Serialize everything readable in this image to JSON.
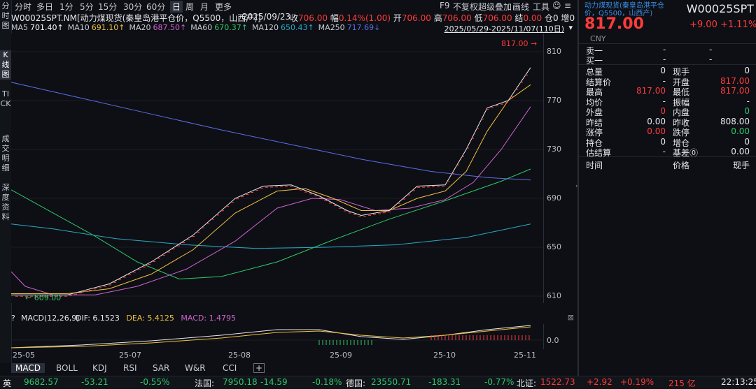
{
  "sidebar": {
    "groups": [
      {
        "label": "分时图",
        "selected": false
      },
      {
        "label": "K线图",
        "selected": true
      },
      {
        "label": "TICK",
        "selected": false
      },
      {
        "label": "成交明细",
        "selected": false
      },
      {
        "label": "深度资料",
        "selected": false
      }
    ]
  },
  "periods": [
    "分时",
    "多日",
    "1分",
    "5分",
    "15分",
    "30分",
    "60分",
    "日",
    "周",
    "月",
    "更多"
  ],
  "selected_period": "日",
  "tools": [
    "F9",
    "不复权",
    "超级叠加",
    "画线",
    "工具",
    "☺",
    "≡"
  ],
  "info": {
    "symbol": "W00025SPT.NM[动力煤现货(秦皇岛港平仓价，Q5500，山西产)]",
    "date": "2025/09/23",
    "close_label": "收",
    "close": "706.00",
    "change_label": "幅",
    "change": "0.14%(1.00)",
    "open_label": "开",
    "open": "706.00",
    "high_label": "高",
    "high": "706.00",
    "low_label": "低",
    "low": "706.00",
    "settle_label": "结",
    "settle": "0.00",
    "pos_label": "仓",
    "pos": "0",
    "inc_label": "增",
    "inc": "0"
  },
  "ma": {
    "items": [
      {
        "label": "MA5",
        "value": "701.40↑",
        "color": "#ffffff"
      },
      {
        "label": "MA10",
        "value": "691.10↑",
        "color": "#f0c040"
      },
      {
        "label": "MA20",
        "value": "687.50↑",
        "color": "#d062d0"
      },
      {
        "label": "MA60",
        "value": "670.37↑",
        "color": "#2ec96a"
      },
      {
        "label": "MA120",
        "value": "650.43↑",
        "color": "#2aa8c8"
      },
      {
        "label": "MA250",
        "value": "717.69↓",
        "color": "#5b6ee8"
      }
    ],
    "range": "2025/05/29-2025/11/07(110日)"
  },
  "chart": {
    "y_ticks": [
      "810",
      "770",
      "730",
      "690",
      "650",
      "610"
    ],
    "high_tag": "817.00",
    "low_tag": "609.00",
    "dates": [
      "25-05",
      "25-07",
      "25-08",
      "25-09",
      "25-10",
      "25-11"
    ],
    "macd_zero": "0.0"
  },
  "macd": {
    "title": "MACD(12,26,9)",
    "dif_label": "DIF:",
    "dif": "6.1523",
    "dea_label": "DEA:",
    "dea": "5.4125",
    "macd_label": "MACD:",
    "macd": "1.4795"
  },
  "indicator_tabs": [
    "MACD",
    "BOLL",
    "KDJ",
    "RSI",
    "SAR",
    "W&R",
    "CCI",
    "+"
  ],
  "quote": {
    "name": "动力煤现货(秦皇岛港平仓价，Q5500，山西产)",
    "code": "W00025SPT",
    "price": "817.00",
    "change": "+9.00",
    "pct": "+1.11%",
    "currency": "CNY",
    "sell1_label": "卖一",
    "sell1_a": "-",
    "sell1_b": "-",
    "buy1_label": "买一",
    "buy1_a": "-",
    "buy1_b": "-",
    "rows": [
      {
        "l1": "总量",
        "v1": "0",
        "l2": "现手",
        "v2": "0",
        "c1": "white",
        "c2": "white"
      },
      {
        "l1": "结算价",
        "v1": "-",
        "l2": "开盘",
        "v2": "817.00",
        "c1": "white",
        "c2": "red"
      },
      {
        "l1": "最高",
        "v1": "817.00",
        "l2": "最低",
        "v2": "817.00",
        "c1": "red",
        "c2": "red"
      },
      {
        "l1": "均价",
        "v1": "-",
        "l2": "振幅",
        "v2": "-",
        "c1": "white",
        "c2": "white"
      },
      {
        "l1": "外盘",
        "v1": "0",
        "l2": "内盘",
        "v2": "0",
        "c1": "red",
        "c2": "green"
      },
      {
        "l1": "昨结",
        "v1": "0.00",
        "l2": "昨收",
        "v2": "808.00",
        "c1": "white",
        "c2": "white"
      },
      {
        "l1": "涨停",
        "v1": "0.00",
        "l2": "跌停",
        "v2": "0.00",
        "c1": "red",
        "c2": "green"
      },
      {
        "l1": "持仓",
        "v1": "0",
        "l2": "增仓",
        "v2": "0",
        "c1": "white",
        "c2": "white"
      },
      {
        "l1": "估结算",
        "v1": "-",
        "l2": "基差⓪",
        "v2": "0.00",
        "c1": "white",
        "c2": "white"
      }
    ],
    "trades_header": [
      "时间",
      "价格",
      "现手"
    ]
  },
  "ticker": {
    "items": [
      {
        "name": "英",
        "value": "9682.57",
        "chg": "-53.21",
        "pct": "-0.55%"
      },
      {
        "name": "法国:",
        "value": "7950.18",
        "chg": "-14.59",
        "pct": "-0.18%"
      },
      {
        "name": "德国:",
        "value": "23550.71",
        "chg": "-183.31",
        "pct": "-0.77%"
      },
      {
        "name": "北证:",
        "value": "1522.73",
        "chg": "+2.92",
        "pct": "+0.19%"
      }
    ],
    "amount": "215 亿",
    "time": "22:13:25"
  }
}
